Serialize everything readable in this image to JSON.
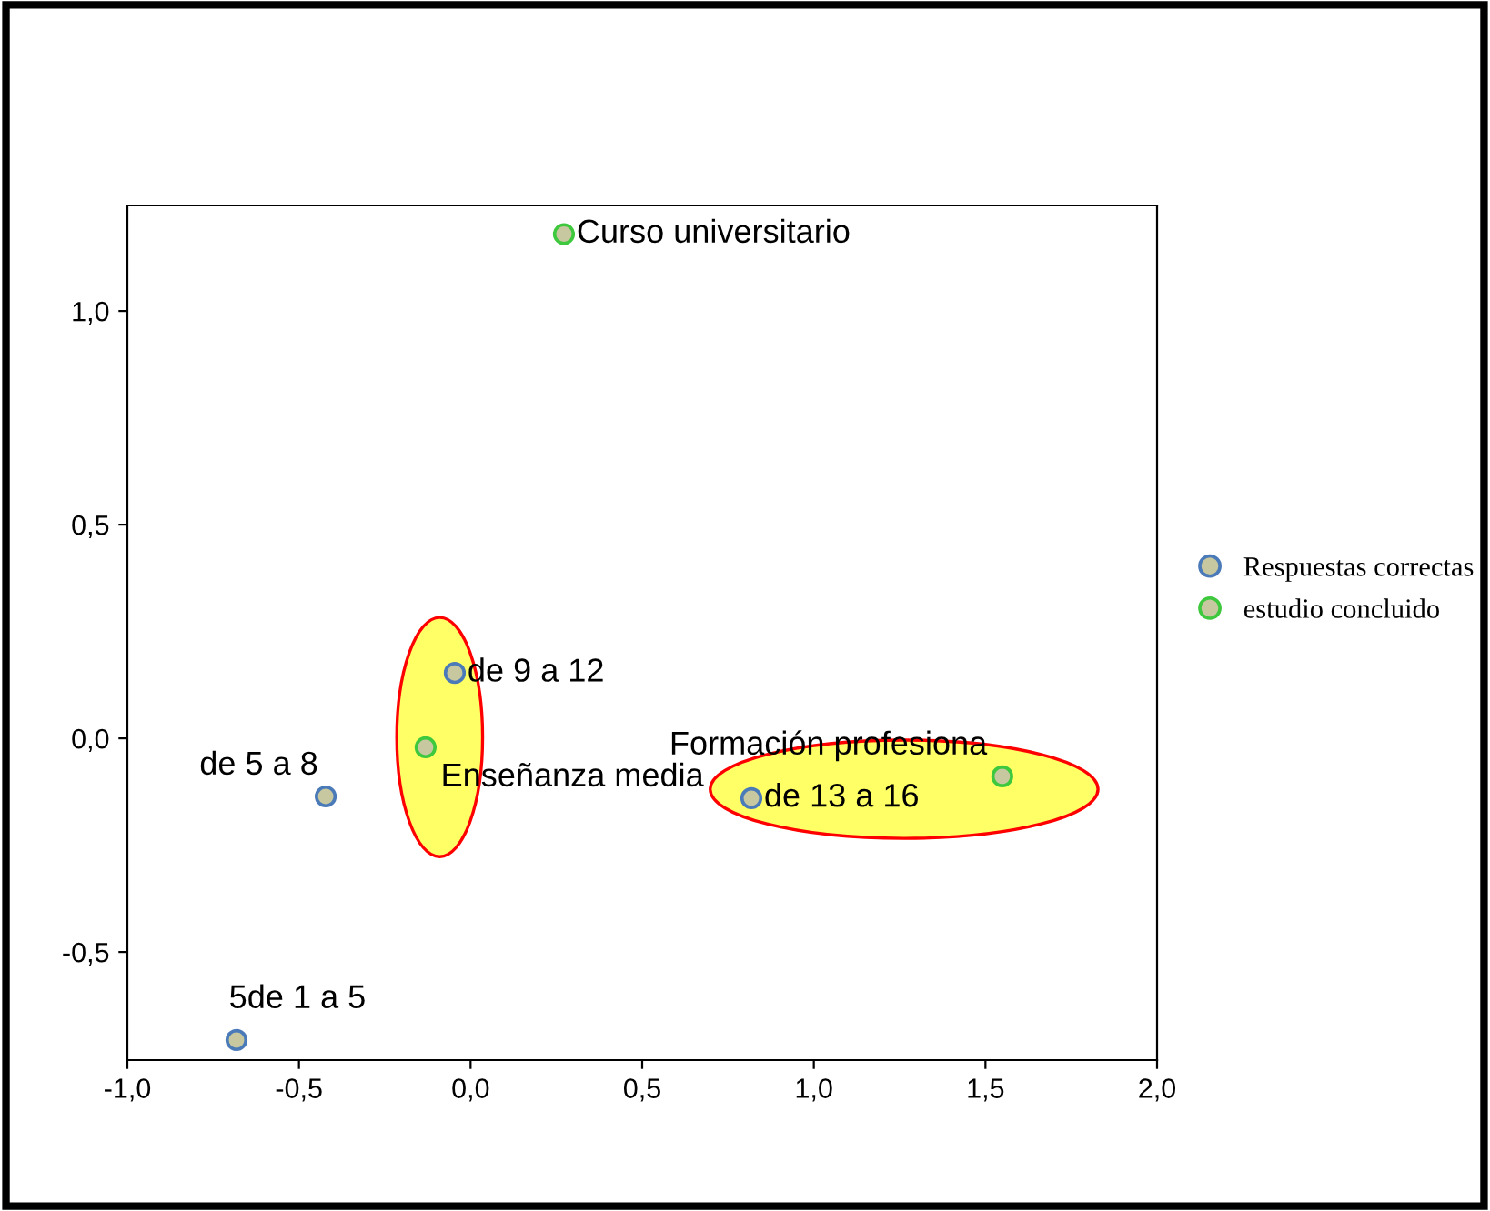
{
  "chart_data": {
    "type": "scatter",
    "series": [
      {
        "name": "Respuestas correctas",
        "color": "#4a7ab8",
        "x": [
          -0.046,
          -0.422,
          0.818,
          -0.682
        ],
        "values": [
          0.153,
          -0.136,
          -0.14,
          -0.706
        ]
      },
      {
        "name": "estudio concluido",
        "color": "#3ec83e",
        "x": [
          0.272,
          -0.131,
          1.549
        ],
        "values": [
          1.18,
          -0.021,
          -0.089
        ]
      }
    ],
    "annotations": [
      {
        "text": "de 9 a 12",
        "x": -0.046,
        "y": 0.153
      },
      {
        "text": "de 5 a 8",
        "x": -0.422,
        "y": -0.136
      },
      {
        "text": "de 13 a 16",
        "x": 0.818,
        "y": -0.14
      },
      {
        "text": "5de 1 a 5",
        "x": -0.682,
        "y": -0.706
      },
      {
        "text": "Curso universitario",
        "x": 0.272,
        "y": 1.18
      },
      {
        "text": "Enseñanza media",
        "x": -0.131,
        "y": -0.021
      },
      {
        "text": "Formación profesiona",
        "x": 1.549,
        "y": -0.089
      }
    ],
    "xlim": [
      -1.0,
      2.0
    ],
    "ylim": [
      -0.753,
      1.247
    ],
    "xticks": [
      {
        "value": -1.0,
        "label": "-1,0"
      },
      {
        "value": -0.5,
        "label": "-0,5"
      },
      {
        "value": 0.0,
        "label": "0,0"
      },
      {
        "value": 0.5,
        "label": "0,5"
      },
      {
        "value": 1.0,
        "label": "1,0"
      },
      {
        "value": 1.5,
        "label": "1,5"
      },
      {
        "value": 2.0,
        "label": "2,0"
      }
    ],
    "yticks": [
      {
        "value": -0.5,
        "label": "-0,5"
      },
      {
        "value": 0.0,
        "label": "0,0"
      },
      {
        "value": 0.5,
        "label": "0,5"
      },
      {
        "value": 1.0,
        "label": "1,0"
      }
    ],
    "marker": "circle",
    "legend": "right",
    "grid": false
  }
}
